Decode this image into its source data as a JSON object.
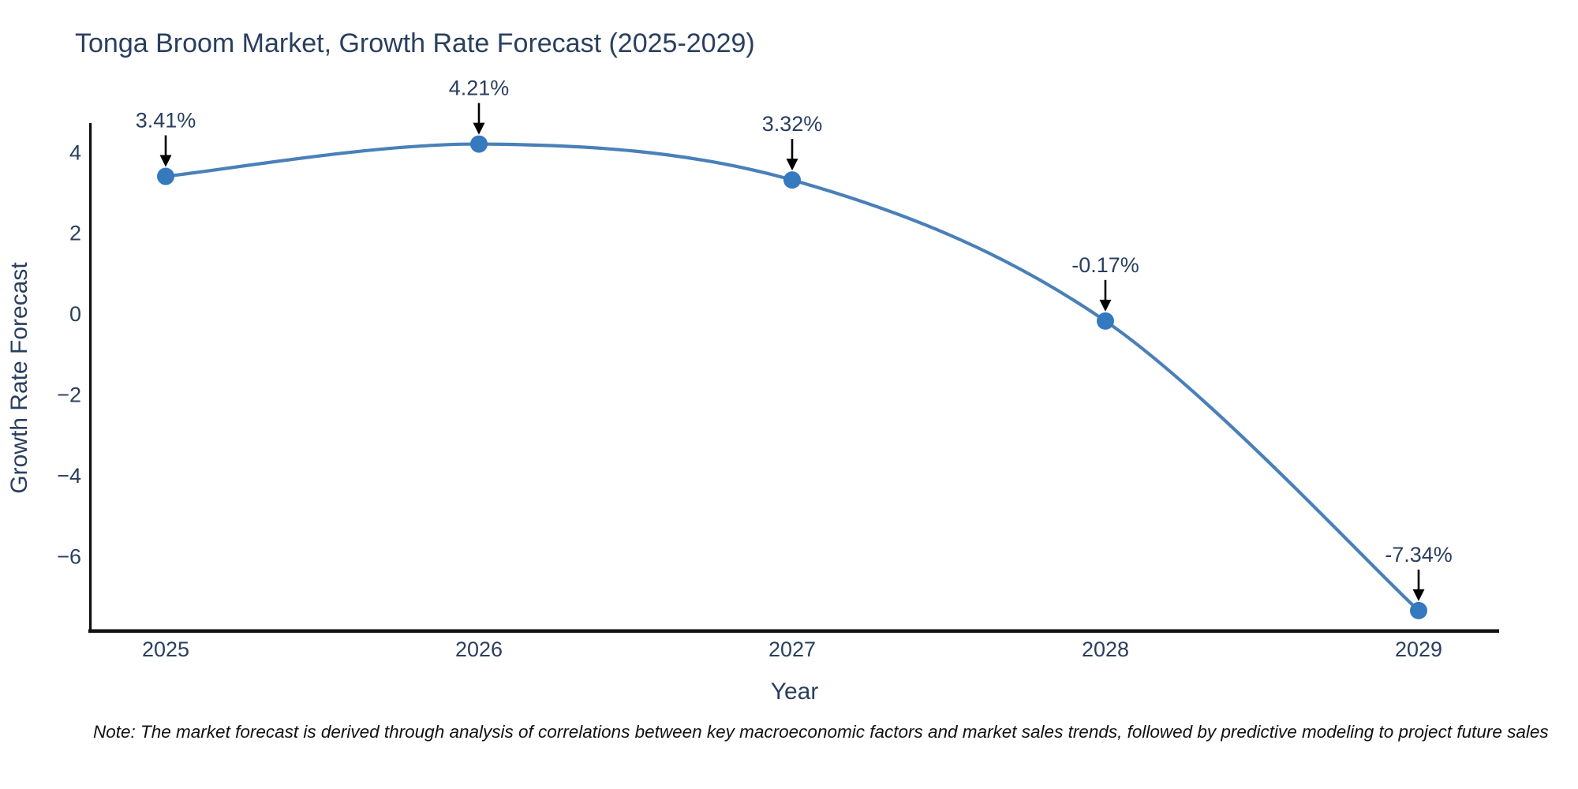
{
  "chart_data": {
    "type": "line",
    "title": "Tonga Broom Market, Growth Rate Forecast (2025-2029)",
    "xlabel": "Year",
    "ylabel": "Growth Rate Forecast",
    "categories": [
      "2025",
      "2026",
      "2027",
      "2028",
      "2029"
    ],
    "series": [
      {
        "name": "Growth Rate Forecast",
        "values": [
          3.41,
          4.21,
          3.32,
          -0.17,
          -7.34
        ]
      }
    ],
    "point_labels": [
      "3.41%",
      "4.21%",
      "3.32%",
      "-0.17%",
      "-7.34%"
    ],
    "yticks": [
      4,
      2,
      0,
      -2,
      -4,
      -6
    ],
    "ylim": [
      -7.85,
      4.69
    ],
    "grid": false,
    "legend": "none",
    "line_shape": "spline",
    "colors": {
      "line": "#4a80b8",
      "marker": "#3579be",
      "text": "#2a3f5f",
      "axis_line": "#111111",
      "annotation_arrow": "#000000"
    }
  },
  "note": {
    "text": "Note: The market forecast is derived through analysis of correlations between key macroeconomic factors and market sales trends, followed by predictive modeling to project future sales"
  }
}
